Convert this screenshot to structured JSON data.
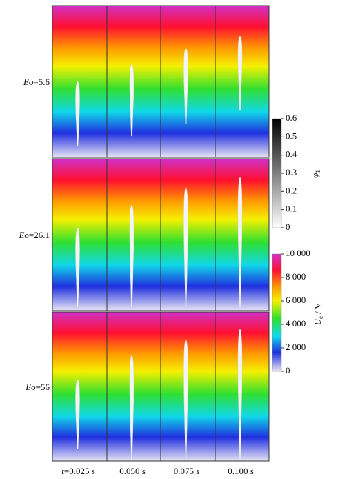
{
  "rows": [
    {
      "symbol": "Eo",
      "text": "=5.6"
    },
    {
      "symbol": "Eo",
      "text": "=26.1"
    },
    {
      "symbol": "Eo",
      "text": "=56"
    }
  ],
  "columns": [
    {
      "symbol": "t",
      "text": "=0.025 s"
    },
    {
      "text": "0.050 s"
    },
    {
      "text": "0.075 s"
    },
    {
      "text": "0.100 s"
    }
  ],
  "colorbar_phase": {
    "symbol": "φ",
    "subscript": "1",
    "ticks": [
      "0.6",
      "0.5",
      "0.4",
      "0.3",
      "0.2",
      "0.1",
      "0"
    ]
  },
  "colorbar_voltage": {
    "symbol": "U",
    "subscript": "e",
    "unit": " / V",
    "ticks": [
      "10 000",
      "8 000",
      "6 000",
      "4 000",
      "2 000",
      "0"
    ]
  }
}
